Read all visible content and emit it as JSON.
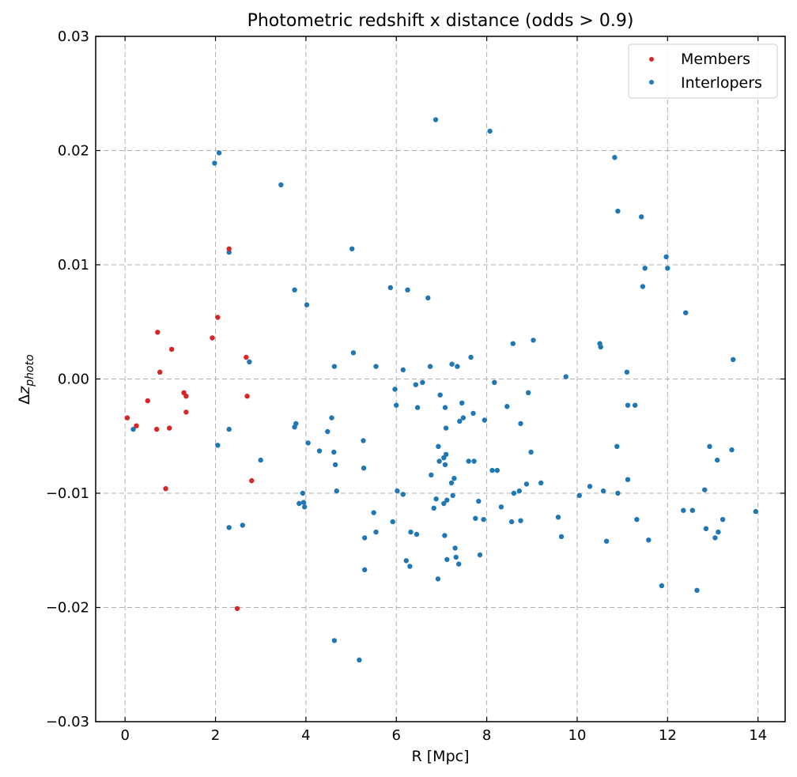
{
  "chart_data": {
    "type": "scatter",
    "title": "Photometric redshift x distance (odds > 0.9)",
    "xlabel": "R [Mpc]",
    "ylabel": "Δz_photo",
    "xlim": [
      -0.65,
      14.6
    ],
    "ylim": [
      -0.03,
      0.03
    ],
    "xticks": [
      0,
      2,
      4,
      6,
      8,
      10,
      12,
      14
    ],
    "xtick_labels": [
      "0",
      "2",
      "4",
      "6",
      "8",
      "10",
      "12",
      "14"
    ],
    "yticks": [
      -0.03,
      -0.02,
      -0.01,
      0.0,
      0.01,
      0.02,
      0.03
    ],
    "ytick_labels": [
      "−0.03",
      "−0.02",
      "−0.01",
      "0.00",
      "0.01",
      "0.02",
      "0.03"
    ],
    "grid": true,
    "legend_position": "top-right",
    "series": [
      {
        "name": "Members",
        "color": "#d62728",
        "points": [
          [
            0.05,
            -0.0034
          ],
          [
            0.25,
            -0.0041
          ],
          [
            0.5,
            -0.0019
          ],
          [
            0.7,
            -0.0044
          ],
          [
            0.72,
            0.0041
          ],
          [
            0.77,
            0.0006
          ],
          [
            0.9,
            -0.0096
          ],
          [
            0.98,
            -0.0043
          ],
          [
            1.03,
            0.0026
          ],
          [
            1.3,
            -0.0012
          ],
          [
            1.35,
            -0.0015
          ],
          [
            1.35,
            -0.0029
          ],
          [
            1.93,
            0.0036
          ],
          [
            2.05,
            0.0054
          ],
          [
            2.3,
            0.0114
          ],
          [
            2.48,
            -0.0201
          ],
          [
            2.68,
            0.0019
          ],
          [
            2.7,
            -0.0015
          ],
          [
            2.8,
            -0.0089
          ]
        ]
      },
      {
        "name": "Interlopers",
        "color": "#1f77b4",
        "points": [
          [
            0.18,
            -0.0044
          ],
          [
            1.98,
            0.0189
          ],
          [
            2.05,
            -0.0058
          ],
          [
            2.08,
            0.0198
          ],
          [
            2.3,
            0.0111
          ],
          [
            2.3,
            -0.0044
          ],
          [
            2.3,
            -0.013
          ],
          [
            2.6,
            -0.0128
          ],
          [
            2.75,
            0.0015
          ],
          [
            3.0,
            -0.0071
          ],
          [
            3.45,
            0.017
          ],
          [
            3.75,
            0.0078
          ],
          [
            3.75,
            -0.0042
          ],
          [
            3.78,
            -0.0039
          ],
          [
            3.85,
            -0.0109
          ],
          [
            3.93,
            -0.01
          ],
          [
            3.95,
            -0.0108
          ],
          [
            3.97,
            -0.0112
          ],
          [
            4.02,
            0.0065
          ],
          [
            4.05,
            -0.0056
          ],
          [
            4.3,
            -0.0063
          ],
          [
            4.48,
            -0.0046
          ],
          [
            4.57,
            -0.0034
          ],
          [
            4.62,
            -0.0064
          ],
          [
            4.63,
            0.0011
          ],
          [
            4.63,
            -0.0229
          ],
          [
            4.65,
            -0.0075
          ],
          [
            4.68,
            -0.0098
          ],
          [
            5.02,
            0.0114
          ],
          [
            5.05,
            0.0023
          ],
          [
            5.18,
            -0.0246
          ],
          [
            5.27,
            -0.0054
          ],
          [
            5.28,
            -0.0078
          ],
          [
            5.3,
            -0.0139
          ],
          [
            5.3,
            -0.0167
          ],
          [
            5.5,
            -0.0117
          ],
          [
            5.55,
            -0.0134
          ],
          [
            5.55,
            0.0011
          ],
          [
            5.87,
            0.008
          ],
          [
            5.92,
            -0.0125
          ],
          [
            5.97,
            -0.0009
          ],
          [
            6.0,
            -0.0023
          ],
          [
            6.02,
            -0.0098
          ],
          [
            6.15,
            0.0008
          ],
          [
            6.15,
            -0.0101
          ],
          [
            6.22,
            -0.0159
          ],
          [
            6.25,
            0.0078
          ],
          [
            6.3,
            -0.0164
          ],
          [
            6.32,
            -0.0134
          ],
          [
            6.43,
            -0.0005
          ],
          [
            6.45,
            -0.0136
          ],
          [
            6.47,
            -0.0025
          ],
          [
            6.58,
            -0.0003
          ],
          [
            6.7,
            0.0071
          ],
          [
            6.75,
            0.0011
          ],
          [
            6.77,
            -0.0084
          ],
          [
            6.83,
            -0.0113
          ],
          [
            6.87,
            0.0227
          ],
          [
            6.88,
            -0.0105
          ],
          [
            6.92,
            -0.0175
          ],
          [
            6.93,
            -0.0059
          ],
          [
            6.95,
            -0.0072
          ],
          [
            6.97,
            -0.0014
          ],
          [
            7.05,
            -0.0109
          ],
          [
            7.05,
            -0.0069
          ],
          [
            7.07,
            -0.0137
          ],
          [
            7.08,
            -0.0025
          ],
          [
            7.08,
            -0.0075
          ],
          [
            7.1,
            -0.0043
          ],
          [
            7.1,
            -0.0066
          ],
          [
            7.12,
            -0.0106
          ],
          [
            7.12,
            -0.0158
          ],
          [
            7.22,
            -0.0091
          ],
          [
            7.23,
            0.0013
          ],
          [
            7.25,
            -0.0102
          ],
          [
            7.28,
            -0.0087
          ],
          [
            7.3,
            -0.0148
          ],
          [
            7.32,
            -0.0156
          ],
          [
            7.35,
            0.0011
          ],
          [
            7.38,
            -0.0162
          ],
          [
            7.4,
            -0.0037
          ],
          [
            7.45,
            -0.0021
          ],
          [
            7.48,
            -0.0034
          ],
          [
            7.6,
            -0.0072
          ],
          [
            7.65,
            0.0019
          ],
          [
            7.7,
            -0.003
          ],
          [
            7.72,
            -0.0072
          ],
          [
            7.75,
            -0.0122
          ],
          [
            7.82,
            -0.0107
          ],
          [
            7.85,
            -0.0154
          ],
          [
            7.93,
            -0.0123
          ],
          [
            7.95,
            -0.0036
          ],
          [
            8.07,
            0.0217
          ],
          [
            8.12,
            -0.008
          ],
          [
            8.17,
            -0.0003
          ],
          [
            8.23,
            -0.008
          ],
          [
            8.32,
            -0.0112
          ],
          [
            8.45,
            -0.0024
          ],
          [
            8.55,
            -0.0125
          ],
          [
            8.58,
            0.0031
          ],
          [
            8.6,
            -0.01
          ],
          [
            8.72,
            -0.0098
          ],
          [
            8.75,
            -0.0039
          ],
          [
            8.75,
            -0.0124
          ],
          [
            8.88,
            -0.0092
          ],
          [
            8.92,
            -0.0012
          ],
          [
            8.98,
            -0.0064
          ],
          [
            9.03,
            0.0034
          ],
          [
            9.2,
            -0.0091
          ],
          [
            9.58,
            -0.0121
          ],
          [
            9.65,
            -0.0138
          ],
          [
            9.75,
            0.0002
          ],
          [
            10.05,
            -0.0102
          ],
          [
            10.28,
            -0.0094
          ],
          [
            10.5,
            0.0031
          ],
          [
            10.52,
            0.0028
          ],
          [
            10.58,
            -0.0098
          ],
          [
            10.65,
            -0.0142
          ],
          [
            10.83,
            0.0194
          ],
          [
            10.88,
            -0.0059
          ],
          [
            10.9,
            0.0147
          ],
          [
            10.9,
            -0.01
          ],
          [
            11.1,
            0.0006
          ],
          [
            11.12,
            -0.0023
          ],
          [
            11.12,
            -0.0088
          ],
          [
            11.28,
            -0.0023
          ],
          [
            11.32,
            -0.0123
          ],
          [
            11.42,
            0.0142
          ],
          [
            11.45,
            0.0081
          ],
          [
            11.5,
            0.0097
          ],
          [
            11.58,
            -0.0141
          ],
          [
            11.87,
            -0.0181
          ],
          [
            11.97,
            0.0107
          ],
          [
            12.0,
            0.0097
          ],
          [
            12.35,
            -0.0115
          ],
          [
            12.4,
            0.0058
          ],
          [
            12.55,
            -0.0115
          ],
          [
            12.65,
            -0.0185
          ],
          [
            12.82,
            -0.0097
          ],
          [
            12.85,
            -0.0131
          ],
          [
            12.93,
            -0.0059
          ],
          [
            13.05,
            -0.0139
          ],
          [
            13.1,
            -0.0071
          ],
          [
            13.12,
            -0.0134
          ],
          [
            13.22,
            -0.0123
          ],
          [
            13.42,
            -0.0062
          ],
          [
            13.45,
            0.0017
          ],
          [
            13.95,
            -0.0116
          ]
        ]
      }
    ]
  }
}
